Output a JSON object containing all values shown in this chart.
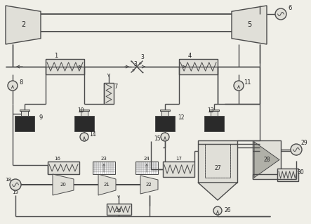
{
  "bg_color": "#f0efe8",
  "lc": "#4a4a4a",
  "lw": 1.0,
  "tlw": 0.7,
  "fill_dark": "#2a2a2a",
  "fill_light": "#e0dfd8",
  "fill_med": "#b0b0a8"
}
